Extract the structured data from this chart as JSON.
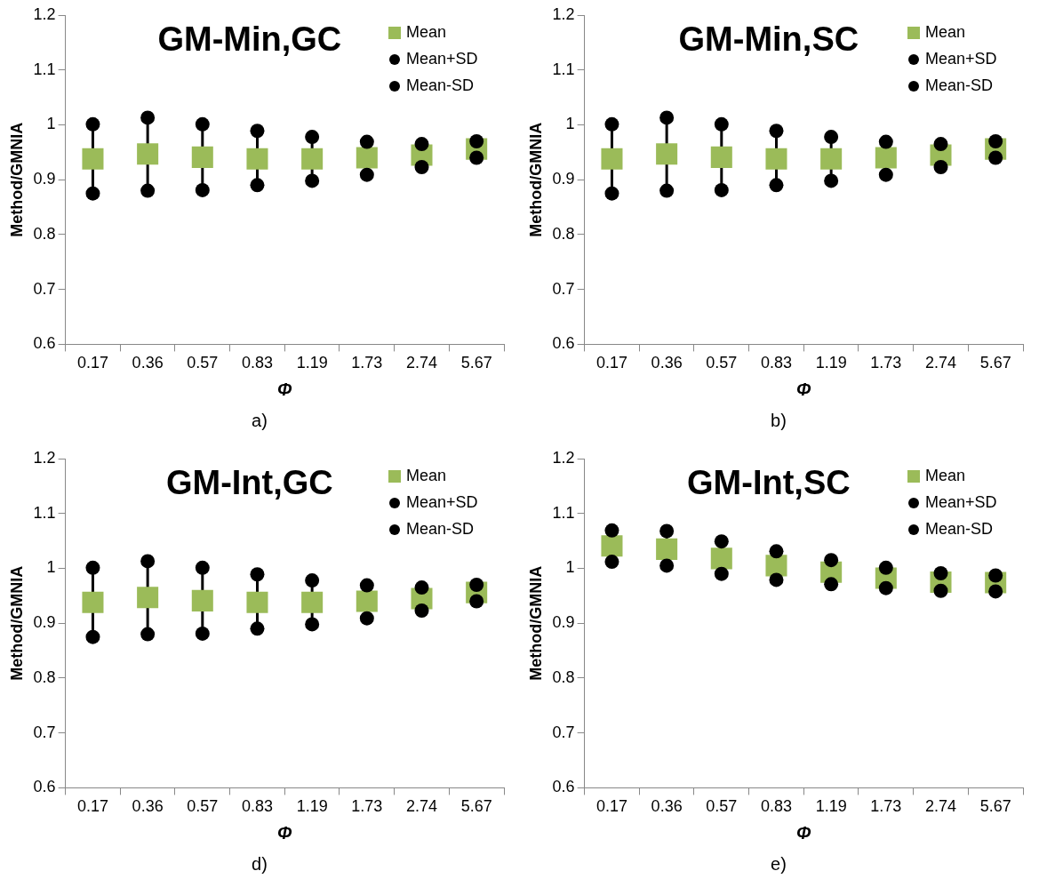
{
  "chart_data": [
    {
      "type": "scatter",
      "title": "GM-Min,GC",
      "xlabel": "Φ",
      "ylabel": "Method/GMNIA",
      "annotations": [
        "a)"
      ],
      "categories": [
        "0.17",
        "0.36",
        "0.57",
        "0.83",
        "1.19",
        "1.73",
        "2.74",
        "5.67"
      ],
      "ylim": [
        0.6,
        1.2
      ],
      "yticks": [
        0.6,
        0.7,
        0.8,
        0.9,
        1,
        1.1,
        1.2
      ],
      "grid": false,
      "legend": "top right",
      "series": [
        {
          "name": "Mean",
          "color": "#9bbb59",
          "marker": "square",
          "values": [
            0.938,
            0.947,
            0.941,
            0.938,
            0.938,
            0.94,
            0.945,
            0.956
          ]
        },
        {
          "name": "Mean+SD",
          "color": "#000000",
          "marker": "circle",
          "values": [
            1.001,
            1.013,
            1.001,
            0.989,
            0.978,
            0.969,
            0.965,
            0.97
          ]
        },
        {
          "name": "Mean-SD",
          "color": "#000000",
          "marker": "circle",
          "values": [
            0.875,
            0.88,
            0.881,
            0.89,
            0.898,
            0.909,
            0.923,
            0.94
          ]
        }
      ]
    },
    {
      "type": "scatter",
      "title": "GM-Min,SC",
      "xlabel": "Φ",
      "ylabel": "Method/GMNIA",
      "annotations": [
        "b)"
      ],
      "categories": [
        "0.17",
        "0.36",
        "0.57",
        "0.83",
        "1.19",
        "1.73",
        "2.74",
        "5.67"
      ],
      "ylim": [
        0.6,
        1.2
      ],
      "yticks": [
        0.6,
        0.7,
        0.8,
        0.9,
        1,
        1.1,
        1.2
      ],
      "grid": false,
      "legend": "top right",
      "series": [
        {
          "name": "Mean",
          "color": "#9bbb59",
          "marker": "square",
          "values": [
            0.938,
            0.947,
            0.941,
            0.938,
            0.938,
            0.94,
            0.945,
            0.956
          ]
        },
        {
          "name": "Mean+SD",
          "color": "#000000",
          "marker": "circle",
          "values": [
            1.001,
            1.013,
            1.001,
            0.989,
            0.978,
            0.969,
            0.965,
            0.97
          ]
        },
        {
          "name": "Mean-SD",
          "color": "#000000",
          "marker": "circle",
          "values": [
            0.875,
            0.88,
            0.881,
            0.89,
            0.898,
            0.909,
            0.923,
            0.94
          ]
        }
      ]
    },
    {
      "type": "scatter",
      "title": "GM-Int,GC",
      "xlabel": "Φ",
      "ylabel": "Method/GMNIA",
      "annotations": [
        "d)"
      ],
      "categories": [
        "0.17",
        "0.36",
        "0.57",
        "0.83",
        "1.19",
        "1.73",
        "2.74",
        "5.67"
      ],
      "ylim": [
        0.6,
        1.2
      ],
      "yticks": [
        0.6,
        0.7,
        0.8,
        0.9,
        1,
        1.1,
        1.2
      ],
      "grid": false,
      "legend": "top right",
      "series": [
        {
          "name": "Mean",
          "color": "#9bbb59",
          "marker": "square",
          "values": [
            0.938,
            0.947,
            0.941,
            0.938,
            0.938,
            0.94,
            0.945,
            0.956
          ]
        },
        {
          "name": "Mean+SD",
          "color": "#000000",
          "marker": "circle",
          "values": [
            1.001,
            1.013,
            1.001,
            0.989,
            0.978,
            0.969,
            0.965,
            0.97
          ]
        },
        {
          "name": "Mean-SD",
          "color": "#000000",
          "marker": "circle",
          "values": [
            0.875,
            0.88,
            0.881,
            0.89,
            0.898,
            0.909,
            0.923,
            0.94
          ]
        }
      ]
    },
    {
      "type": "scatter",
      "title": "GM-Int,SC",
      "xlabel": "Φ",
      "ylabel": "Method/GMNIA",
      "annotations": [
        "e)"
      ],
      "categories": [
        "0.17",
        "0.36",
        "0.57",
        "0.83",
        "1.19",
        "1.73",
        "2.74",
        "5.67"
      ],
      "ylim": [
        0.6,
        1.2
      ],
      "yticks": [
        0.6,
        0.7,
        0.8,
        0.9,
        1,
        1.1,
        1.2
      ],
      "grid": false,
      "legend": "top right",
      "series": [
        {
          "name": "Mean",
          "color": "#9bbb59",
          "marker": "square",
          "values": [
            1.041,
            1.035,
            1.018,
            1.005,
            0.993,
            0.982,
            0.975,
            0.974
          ]
        },
        {
          "name": "Mean+SD",
          "color": "#000000",
          "marker": "circle",
          "values": [
            1.069,
            1.068,
            1.049,
            1.031,
            1.015,
            1.001,
            0.991,
            0.987
          ]
        },
        {
          "name": "Mean-SD",
          "color": "#000000",
          "marker": "circle",
          "values": [
            1.012,
            1.005,
            0.99,
            0.979,
            0.971,
            0.964,
            0.959,
            0.958
          ]
        }
      ]
    }
  ]
}
